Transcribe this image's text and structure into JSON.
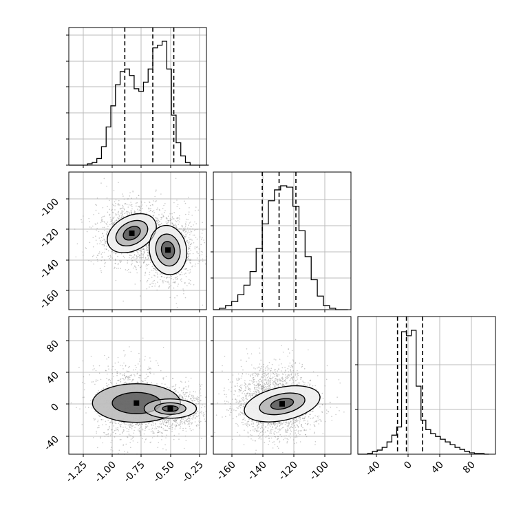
{
  "chart_data": [
    {
      "type": "histogram",
      "panel": "param0-marginal",
      "xlim": [
        -1.4,
        -0.22
      ],
      "bins_x": [
        -1.4,
        -1.36,
        -1.32,
        -1.28,
        -1.24,
        -1.2,
        -1.16,
        -1.12,
        -1.08,
        -1.04,
        -1.0,
        -0.96,
        -0.92,
        -0.88,
        -0.84,
        -0.8,
        -0.76,
        -0.72,
        -0.68,
        -0.64,
        -0.6,
        -0.56,
        -0.52,
        -0.48,
        -0.44,
        -0.4,
        -0.36,
        -0.32,
        -0.28,
        -0.24
      ],
      "counts": [
        0,
        0,
        0,
        0,
        0.01,
        0.02,
        0.05,
        0.14,
        0.29,
        0.45,
        0.61,
        0.71,
        0.73,
        0.68,
        0.58,
        0.56,
        0.63,
        0.73,
        0.89,
        0.91,
        0.94,
        0.73,
        0.38,
        0.17,
        0.07,
        0.02,
        0,
        0,
        0,
        0
      ],
      "quantile_lines": [
        -0.92,
        -0.68,
        -0.5
      ],
      "grid": true
    },
    {
      "type": "2d-density",
      "panel": "param0-vs-param1",
      "xlim": [
        -1.4,
        -0.22
      ],
      "ylim": [
        -173,
        -83
      ],
      "yticks": [
        "-100",
        "-120",
        "-140",
        "-160"
      ],
      "modes": [
        {
          "x": -0.88,
          "y": -123
        },
        {
          "x": -0.54,
          "y": -133
        }
      ],
      "grid": true
    },
    {
      "type": "histogram",
      "panel": "param1-marginal",
      "xlim": [
        -173,
        -83
      ],
      "bins_x": [
        -173,
        -169,
        -165,
        -161,
        -157,
        -153,
        -149,
        -145,
        -141,
        -137,
        -133,
        -129,
        -125,
        -121,
        -117,
        -113,
        -109,
        -105,
        -101,
        -97,
        -93,
        -89,
        -85
      ],
      "counts": [
        0,
        0.01,
        0.03,
        0.06,
        0.11,
        0.18,
        0.28,
        0.45,
        0.63,
        0.8,
        0.88,
        0.91,
        0.9,
        0.76,
        0.58,
        0.39,
        0.22,
        0.1,
        0.03,
        0.01,
        0,
        0
      ],
      "quantile_lines": [
        -141,
        -130,
        -119
      ],
      "grid": true
    },
    {
      "type": "2d-density",
      "panel": "param0-vs-param2",
      "xlim": [
        -1.4,
        -0.22
      ],
      "ylim": [
        -60,
        115
      ],
      "yticks": [
        "80",
        "40",
        "0",
        "-40"
      ],
      "xticks": [
        "-1.25",
        "-1.00",
        "-0.75",
        "-0.50",
        "-0.25"
      ],
      "modes": [
        {
          "x": -0.55,
          "y": -2
        }
      ],
      "grid": true
    },
    {
      "type": "2d-density",
      "panel": "param1-vs-param2",
      "xlim": [
        -173,
        -83
      ],
      "ylim": [
        -60,
        115
      ],
      "xticks": [
        "-160",
        "-140",
        "-120",
        "-100"
      ],
      "modes": [
        {
          "x": -133,
          "y": -2
        }
      ],
      "grid": true
    },
    {
      "type": "histogram",
      "panel": "param2-marginal",
      "xlim": [
        -60,
        110
      ],
      "bins_x": [
        -60,
        -54,
        -48,
        -42,
        -36,
        -30,
        -24,
        -18,
        -12,
        -6,
        0,
        6,
        12,
        18,
        24,
        30,
        36,
        42,
        48,
        54,
        60,
        66,
        72,
        78,
        84,
        90,
        96,
        102
      ],
      "counts": [
        0,
        0,
        0.005,
        0.02,
        0.03,
        0.05,
        0.09,
        0.14,
        0.2,
        0.9,
        0.87,
        0.91,
        0.5,
        0.25,
        0.18,
        0.15,
        0.13,
        0.11,
        0.09,
        0.07,
        0.05,
        0.035,
        0.02,
        0.01,
        0.005,
        0.005,
        0
      ],
      "quantile_lines": [
        -11,
        0,
        20
      ],
      "xticks": [
        "-40",
        "0",
        "40",
        "80"
      ],
      "grid": true
    }
  ]
}
